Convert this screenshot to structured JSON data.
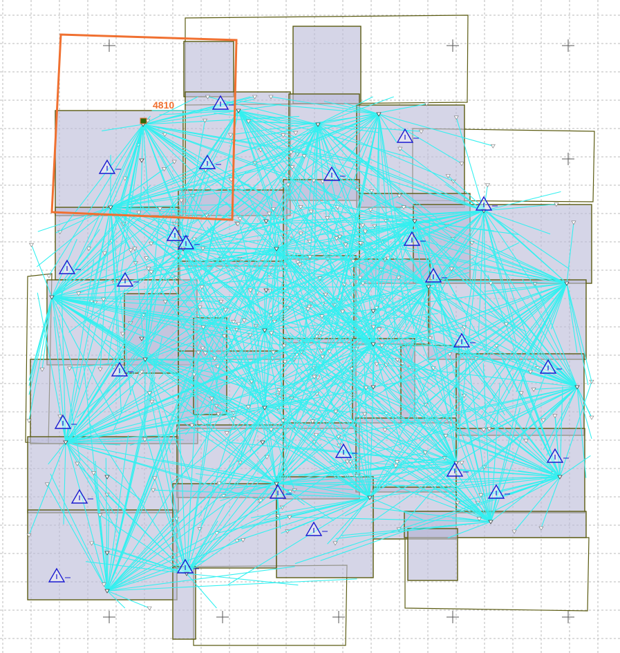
{
  "selected_photo": {
    "id_label": "4810",
    "highlight_color": "#f07030"
  },
  "colors": {
    "photo_fill": "#bcbcd8",
    "photo_stroke": "#5a5a10",
    "tie_line": "#33f0f0",
    "control_point": "#1a1ad0",
    "grid": "#b8b8b8"
  },
  "icons": {
    "control_point": "triangle-icon",
    "grid_cross": "plus-icon",
    "photo_center": "triangle-down-icon"
  }
}
